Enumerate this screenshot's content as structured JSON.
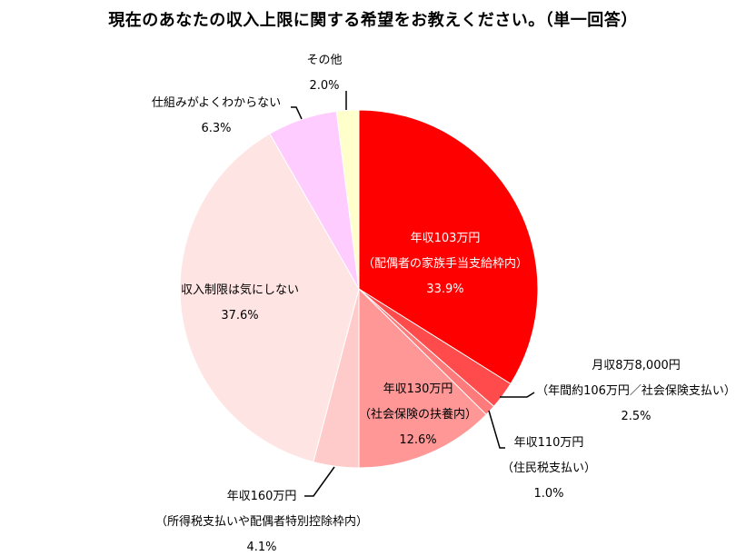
{
  "chart_data": {
    "type": "pie",
    "title": "現在のあなたの収入上限に関する希望をお教えください。（単一回答）",
    "start_angle_deg": 0,
    "direction": "clockwise",
    "slices": [
      {
        "name": "年収103万円",
        "sublabel": "（配偶者の家族手当支給枠内）",
        "value": 33.9,
        "value_label": "33.9%",
        "color": "#ff0000",
        "label_color": "#ffffff",
        "label_inside": true
      },
      {
        "name": "月収8万8,000円",
        "sublabel": "（年間約106万円／社会保険支払い）",
        "value": 2.5,
        "value_label": "2.5%",
        "color": "#ff4b4b",
        "label_color": "#000000",
        "label_inside": false
      },
      {
        "name": "年収110万円",
        "sublabel": "（住民税支払い）",
        "value": 1.0,
        "value_label": "1.0%",
        "color": "#ff7b7b",
        "label_color": "#000000",
        "label_inside": false
      },
      {
        "name": "年収130万円",
        "sublabel": "（社会保険の扶養内）",
        "value": 12.6,
        "value_label": "12.6%",
        "color": "#ff9797",
        "label_color": "#000000",
        "label_inside": true
      },
      {
        "name": "年収160万円",
        "sublabel": "（所得税支払いや配偶者特別控除枠内）",
        "value": 4.1,
        "value_label": "4.1%",
        "color": "#ffcaca",
        "label_color": "#000000",
        "label_inside": false
      },
      {
        "name": "収入制限は気にしない",
        "sublabel": "",
        "value": 37.6,
        "value_label": "37.6%",
        "color": "#ffe4e4",
        "label_color": "#000000",
        "label_inside": true
      },
      {
        "name": "仕組みがよくわからない",
        "sublabel": "",
        "value": 6.3,
        "value_label": "6.3%",
        "color": "#ffccff",
        "label_color": "#000000",
        "label_inside": false
      },
      {
        "name": "その他",
        "sublabel": "",
        "value": 2.0,
        "value_label": "2.0%",
        "color": "#ffffcc",
        "label_color": "#000000",
        "label_inside": false
      }
    ]
  }
}
